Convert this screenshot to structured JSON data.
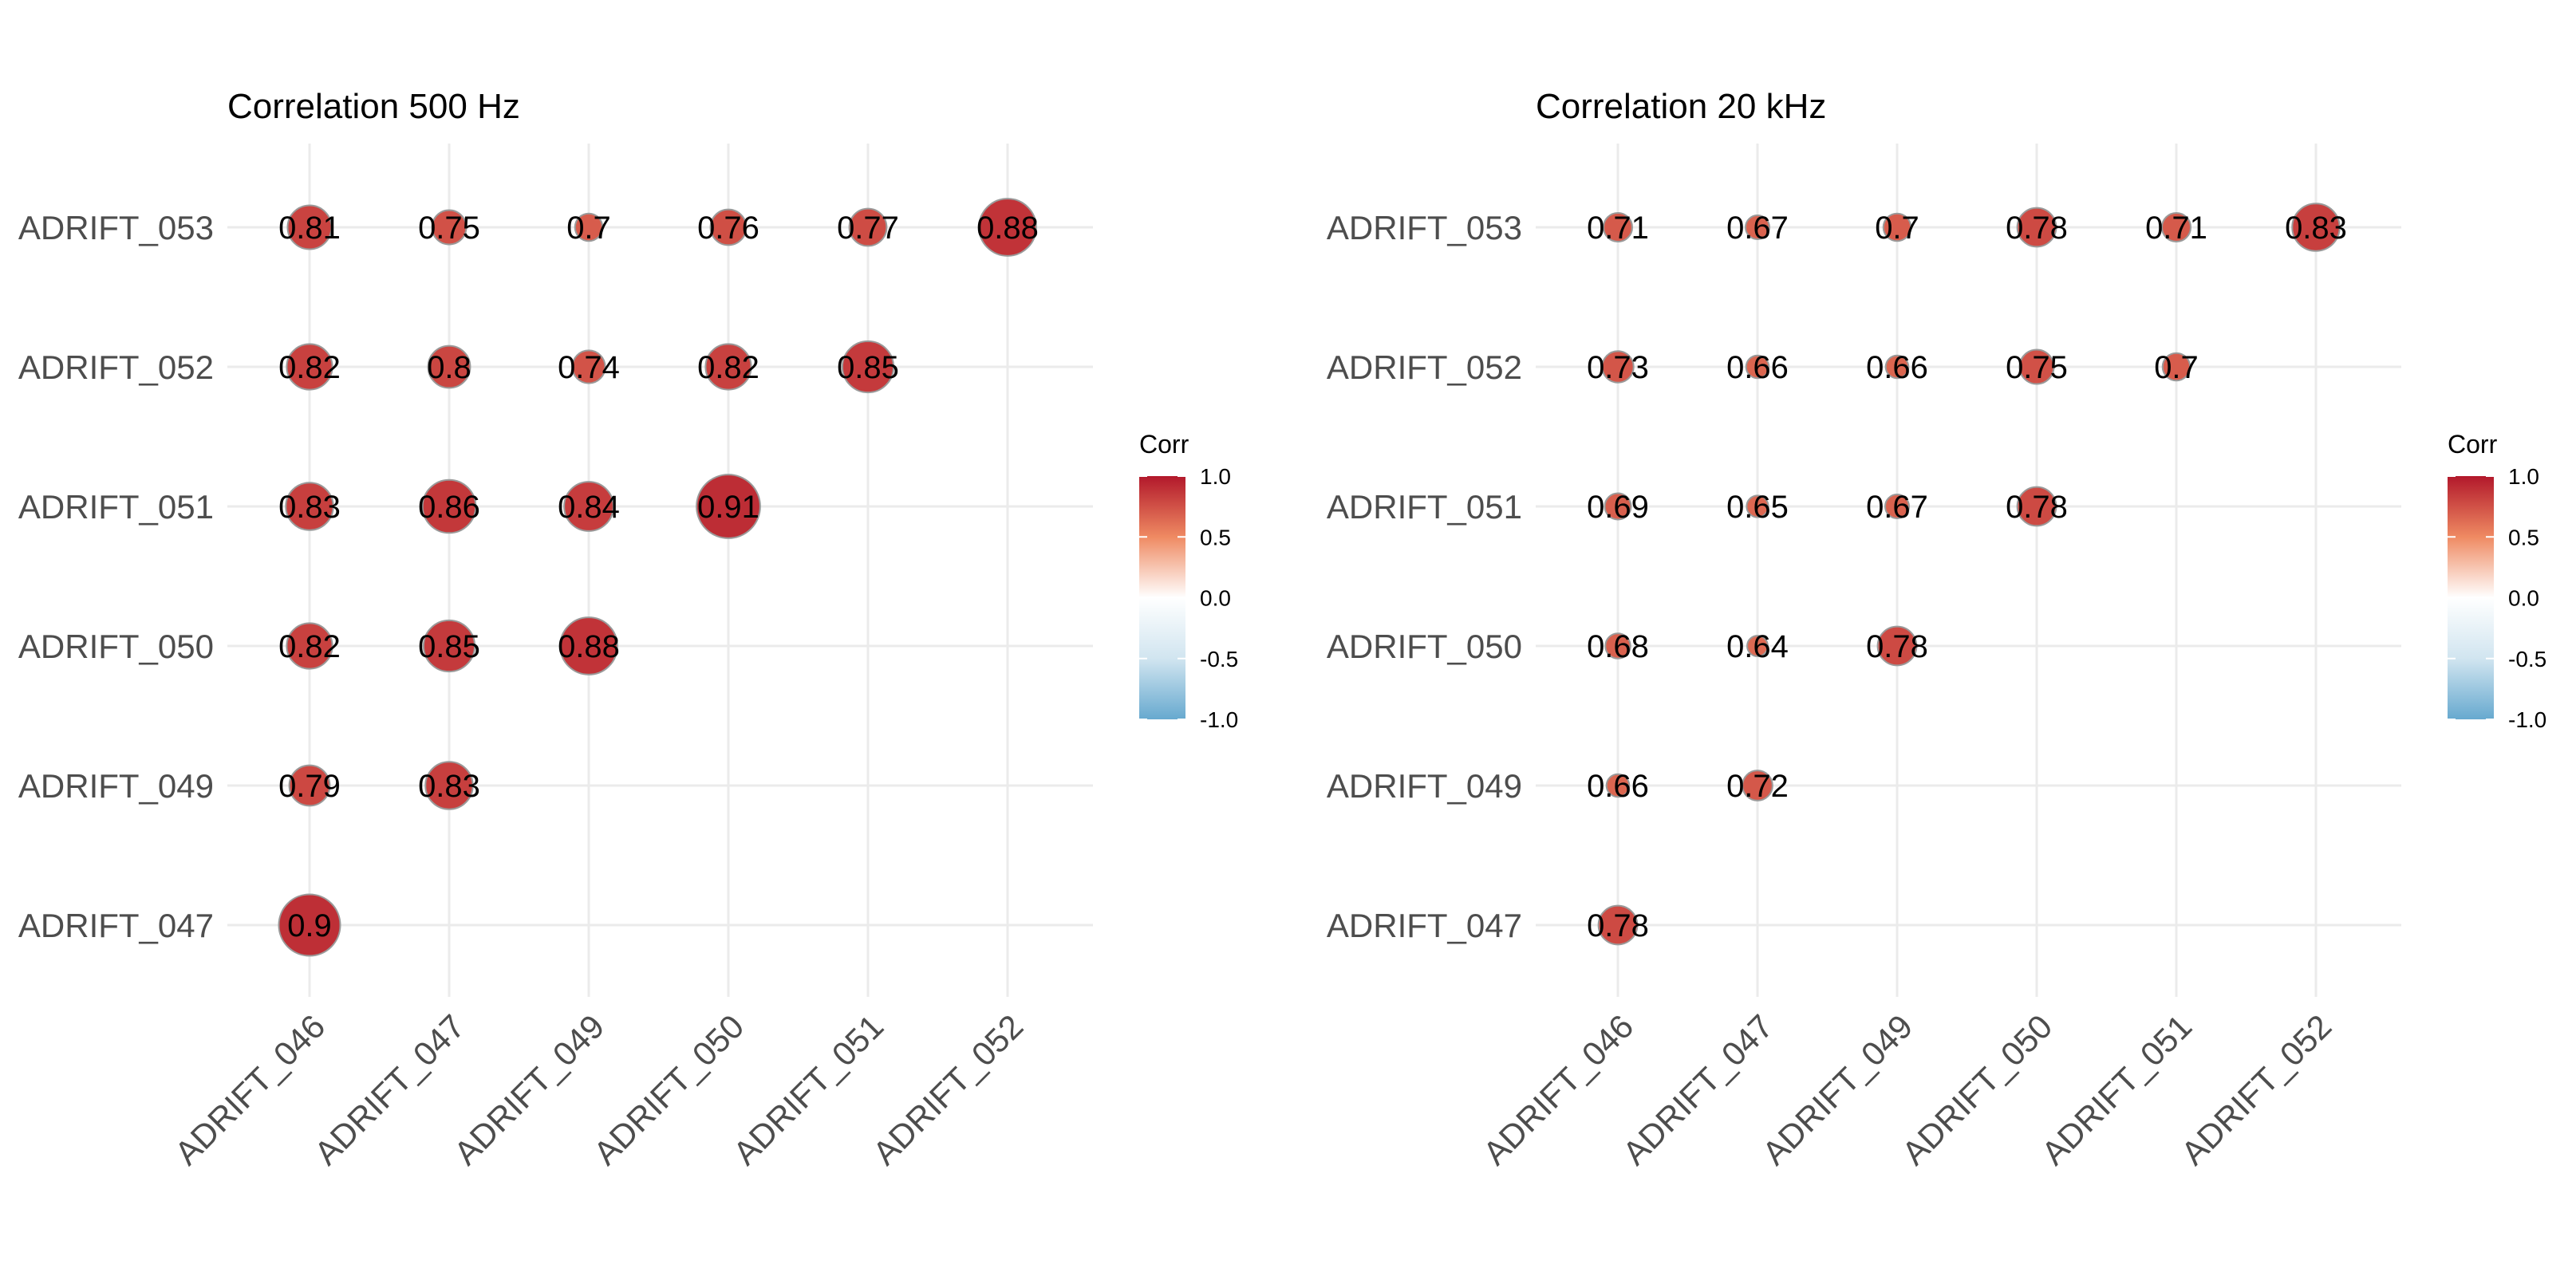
{
  "colors": {
    "high": "#B2182B",
    "mid": "#FFFFFF",
    "low": "#67A9CF",
    "grid": "#EBEBEB",
    "circle_outline": "#9A9A9A"
  },
  "chart_data": [
    {
      "type": "heatmap",
      "subtype": "correlogram-circles",
      "title": "Correlation 500 Hz",
      "x": [
        "ADRIFT_046",
        "ADRIFT_047",
        "ADRIFT_049",
        "ADRIFT_050",
        "ADRIFT_051",
        "ADRIFT_052"
      ],
      "y": [
        "ADRIFT_053",
        "ADRIFT_052",
        "ADRIFT_051",
        "ADRIFT_050",
        "ADRIFT_049",
        "ADRIFT_047"
      ],
      "values": [
        [
          0.81,
          0.75,
          0.7,
          0.76,
          0.77,
          0.88
        ],
        [
          0.82,
          0.8,
          0.74,
          0.82,
          0.85,
          null
        ],
        [
          0.83,
          0.86,
          0.84,
          0.91,
          null,
          null
        ],
        [
          0.82,
          0.85,
          0.88,
          null,
          null,
          null
        ],
        [
          0.79,
          0.83,
          null,
          null,
          null,
          null
        ],
        [
          0.9,
          null,
          null,
          null,
          null,
          null
        ]
      ],
      "labels": [
        [
          "0.81",
          "0.75",
          "0.7",
          "0.76",
          "0.77",
          "0.88"
        ],
        [
          "0.82",
          "0.8",
          "0.74",
          "0.82",
          "0.85",
          null
        ],
        [
          "0.83",
          "0.86",
          "0.84",
          "0.91",
          null,
          null
        ],
        [
          "0.82",
          "0.85",
          "0.88",
          null,
          null,
          null
        ],
        [
          "0.79",
          "0.83",
          null,
          null,
          null,
          null
        ],
        [
          "0.9",
          null,
          null,
          null,
          null,
          null
        ]
      ],
      "legend": {
        "title": "Corr",
        "ticks": [
          "1.0",
          "0.5",
          "0.0",
          "-0.5",
          "-1.0"
        ],
        "range": [
          -1,
          1
        ],
        "placement": "right"
      },
      "grid": true
    },
    {
      "type": "heatmap",
      "subtype": "correlogram-circles",
      "title": "Correlation 20 kHz",
      "x": [
        "ADRIFT_046",
        "ADRIFT_047",
        "ADRIFT_049",
        "ADRIFT_050",
        "ADRIFT_051",
        "ADRIFT_052"
      ],
      "y": [
        "ADRIFT_053",
        "ADRIFT_052",
        "ADRIFT_051",
        "ADRIFT_050",
        "ADRIFT_049",
        "ADRIFT_047"
      ],
      "values": [
        [
          0.71,
          0.67,
          0.7,
          0.78,
          0.71,
          0.83
        ],
        [
          0.73,
          0.66,
          0.66,
          0.75,
          0.7,
          null
        ],
        [
          0.69,
          0.65,
          0.67,
          0.78,
          null,
          null
        ],
        [
          0.68,
          0.64,
          0.78,
          null,
          null,
          null
        ],
        [
          0.66,
          0.72,
          null,
          null,
          null,
          null
        ],
        [
          0.78,
          null,
          null,
          null,
          null,
          null
        ]
      ],
      "labels": [
        [
          "0.71",
          "0.67",
          "0.7",
          "0.78",
          "0.71",
          "0.83"
        ],
        [
          "0.73",
          "0.66",
          "0.66",
          "0.75",
          "0.7",
          null
        ],
        [
          "0.69",
          "0.65",
          "0.67",
          "0.78",
          null,
          null
        ],
        [
          "0.68",
          "0.64",
          "0.78",
          null,
          null,
          null
        ],
        [
          "0.66",
          "0.72",
          null,
          null,
          null,
          null
        ],
        [
          "0.78",
          null,
          null,
          null,
          null,
          null
        ]
      ],
      "legend": {
        "title": "Corr",
        "ticks": [
          "1.0",
          "0.5",
          "0.0",
          "-0.5",
          "-1.0"
        ],
        "range": [
          -1,
          1
        ],
        "placement": "right"
      },
      "grid": true
    }
  ]
}
